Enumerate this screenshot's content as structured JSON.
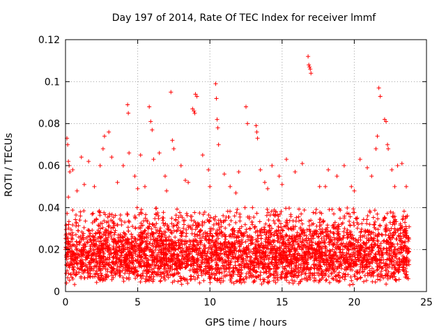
{
  "chart_data": {
    "type": "scatter",
    "title": "Day 197 of 2014, Rate Of TEC Index for receiver lmmf",
    "xlabel": "GPS time / hours",
    "ylabel": "ROTI / TECUs",
    "xlim": [
      0,
      25
    ],
    "ylim": [
      0,
      0.12
    ],
    "x_ticks": [
      0,
      5,
      10,
      15,
      20,
      25
    ],
    "x_tick_labels": [
      "0",
      "5",
      "10",
      "15",
      "20",
      "25"
    ],
    "y_ticks": [
      0,
      0.02,
      0.04,
      0.06,
      0.08,
      0.1,
      0.12
    ],
    "y_tick_labels": [
      "0",
      "0.02",
      "0.04",
      "0.06",
      "0.08",
      "0.1",
      "0.12"
    ],
    "grid": true,
    "marker": "+",
    "series": [
      {
        "name": "ROTI",
        "color": "#ff0000",
        "x": [
          0.1,
          0.15,
          0.2,
          0.25,
          0.3,
          2.6,
          2.7,
          3.0,
          4.3,
          4.35,
          4.4,
          5.8,
          5.9,
          6.0,
          6.1,
          7.3,
          7.4,
          8.8,
          8.9,
          8.95,
          9.0,
          9.1,
          10.4,
          10.45,
          10.5,
          10.55,
          10.6,
          12.5,
          12.6,
          13.2,
          13.25,
          13.3,
          16.8,
          16.85,
          16.9,
          16.95,
          17.0,
          21.5,
          21.6,
          21.7,
          21.8,
          22.1,
          22.2,
          22.3,
          22.35,
          0.2,
          0.5,
          1.1,
          1.6,
          2.4,
          3.2,
          3.6,
          4.0,
          4.8,
          5.2,
          5.5,
          6.5,
          6.9,
          7.5,
          8.0,
          8.3,
          9.5,
          9.9,
          11.0,
          11.4,
          12.0,
          13.5,
          13.8,
          14.3,
          14.8,
          15.3,
          15.9,
          16.4,
          17.6,
          18.2,
          18.8,
          19.3,
          19.8,
          20.4,
          20.9,
          21.2,
          22.6,
          23.0,
          23.3,
          23.6,
          0.8,
          1.3,
          2.0,
          5.0,
          7.0,
          8.5,
          10.0,
          11.8,
          14.0,
          15.0,
          18.0,
          20.0,
          22.8
        ],
        "y": [
          0.073,
          0.07,
          0.062,
          0.06,
          0.057,
          0.068,
          0.074,
          0.076,
          0.089,
          0.085,
          0.066,
          0.088,
          0.081,
          0.077,
          0.063,
          0.095,
          0.072,
          0.087,
          0.086,
          0.085,
          0.094,
          0.093,
          0.099,
          0.092,
          0.082,
          0.078,
          0.07,
          0.088,
          0.08,
          0.079,
          0.076,
          0.073,
          0.112,
          0.108,
          0.107,
          0.106,
          0.104,
          0.068,
          0.074,
          0.097,
          0.093,
          0.082,
          0.081,
          0.07,
          0.068,
          0.045,
          0.058,
          0.064,
          0.062,
          0.06,
          0.064,
          0.052,
          0.06,
          0.055,
          0.065,
          0.05,
          0.066,
          0.055,
          0.068,
          0.06,
          0.053,
          0.065,
          0.058,
          0.056,
          0.05,
          0.057,
          0.058,
          0.052,
          0.06,
          0.055,
          0.063,
          0.057,
          0.061,
          0.05,
          0.058,
          0.055,
          0.06,
          0.05,
          0.063,
          0.059,
          0.055,
          0.058,
          0.06,
          0.061,
          0.05,
          0.048,
          0.051,
          0.05,
          0.049,
          0.048,
          0.052,
          0.05,
          0.047,
          0.049,
          0.051,
          0.05,
          0.048,
          0.05
        ],
        "dense_band": {
          "x_range": [
            0,
            23.8
          ],
          "y_range": [
            0.003,
            0.04
          ],
          "y_median": 0.015,
          "approx_count": 4000
        }
      }
    ]
  }
}
